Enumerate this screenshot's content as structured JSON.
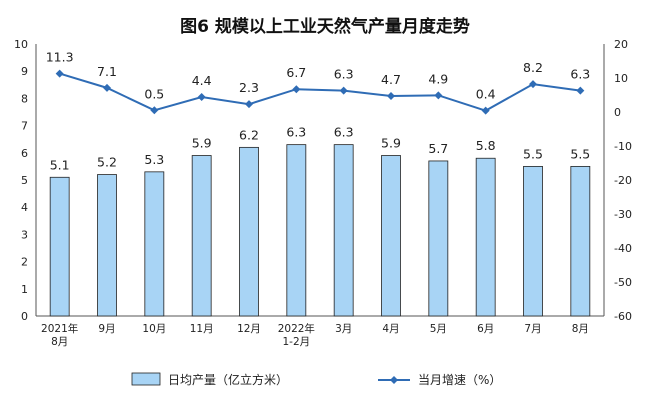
{
  "chart_data": {
    "type": "bar+line",
    "title": "图6  规模以上工业天然气产量月度走势",
    "categories": [
      [
        "2021年",
        "8月"
      ],
      [
        "9月"
      ],
      [
        "10月"
      ],
      [
        "11月"
      ],
      [
        "12月"
      ],
      [
        "2022年",
        "1-2月"
      ],
      [
        "3月"
      ],
      [
        "4月"
      ],
      [
        "5月"
      ],
      [
        "6月"
      ],
      [
        "7月"
      ],
      [
        "8月"
      ]
    ],
    "series": [
      {
        "name": "日均产量（亿立方米）",
        "type": "bar",
        "axis": "left",
        "color": "#a8d4f5",
        "values": [
          5.1,
          5.2,
          5.3,
          5.9,
          6.2,
          6.3,
          6.3,
          5.9,
          5.7,
          5.8,
          5.5,
          5.5
        ],
        "labels": [
          "5.1",
          "5.2",
          "5.3",
          "5.9",
          "6.2",
          "6.3",
          "6.3",
          "5.9",
          "5.7",
          "5.8",
          "5.5",
          "5.5"
        ]
      },
      {
        "name": "当月增速（%）",
        "type": "line",
        "axis": "right",
        "color": "#2f6cb5",
        "values": [
          11.3,
          7.1,
          0.5,
          4.4,
          2.3,
          6.7,
          6.3,
          4.7,
          4.9,
          0.4,
          8.2,
          6.3
        ],
        "labels": [
          "11.3",
          "7.1",
          "0.5",
          "4.4",
          "2.3",
          "6.7",
          "6.3",
          "4.7",
          "4.9",
          "0.4",
          "8.2",
          "6.3"
        ]
      }
    ],
    "left_axis": {
      "min": 0,
      "max": 10,
      "step": 1,
      "ticks": [
        "0",
        "1",
        "2",
        "3",
        "4",
        "5",
        "6",
        "7",
        "8",
        "9",
        "10"
      ]
    },
    "right_axis": {
      "min": -60,
      "max": 20,
      "step": 10,
      "ticks": [
        "-60",
        "-50",
        "-40",
        "-30",
        "-20",
        "-10",
        "0",
        "10",
        "20"
      ]
    },
    "legend": {
      "position": "bottom"
    },
    "grid": false
  }
}
